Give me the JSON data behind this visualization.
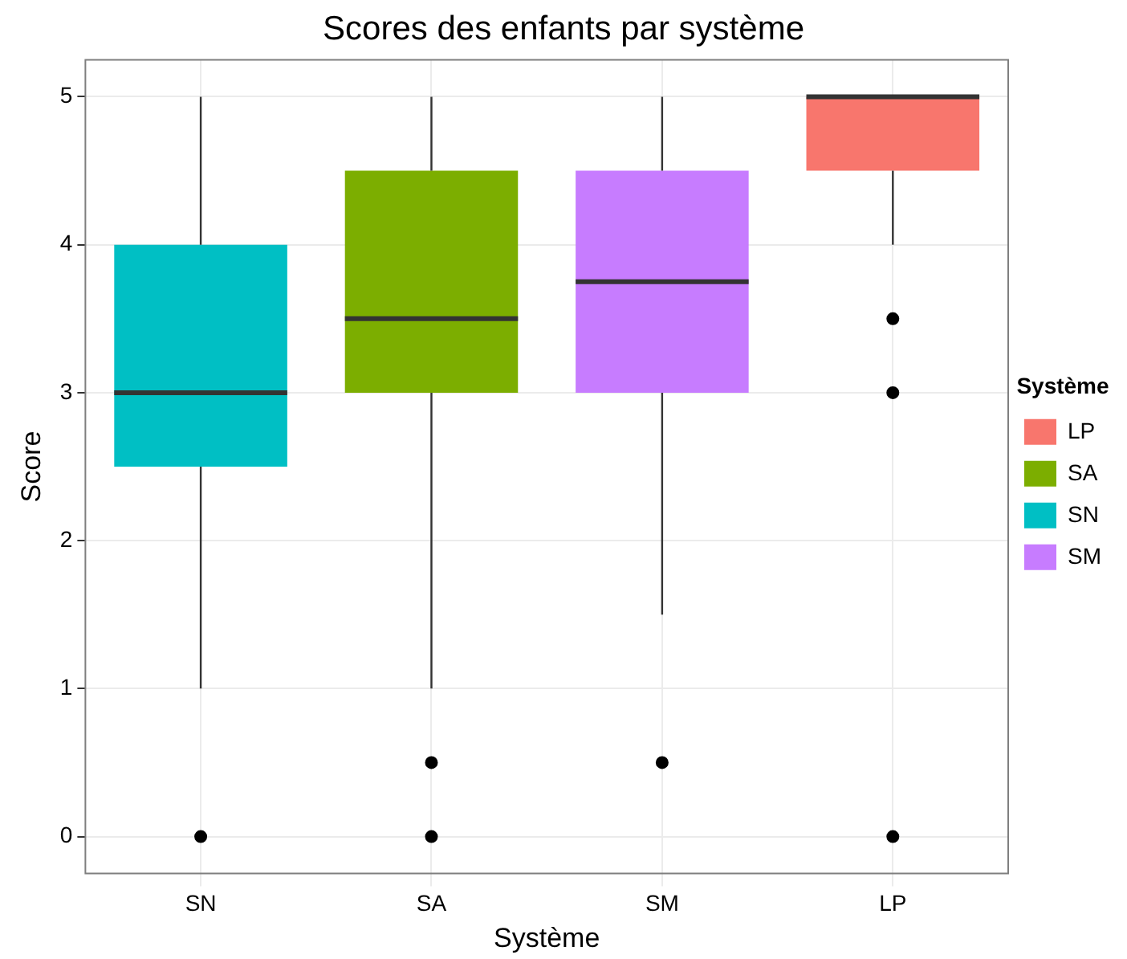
{
  "chart_data": {
    "type": "box",
    "title": "Scores des enfants par système",
    "xlabel": "Système",
    "ylabel": "Score",
    "legend_title": "Système",
    "categories": [
      "SN",
      "SA",
      "SM",
      "LP"
    ],
    "ylim": [
      -0.25,
      5.25
    ],
    "yticks": [
      0,
      1,
      2,
      3,
      4,
      5
    ],
    "grid": true,
    "legend": "right",
    "series": [
      {
        "name": "LP",
        "color": "#f8766d",
        "boxes": [
          null,
          null,
          null,
          {
            "low": 4,
            "q1": 4.5,
            "median": 5,
            "q3": 5,
            "high": 5,
            "outliers": [
              3.5,
              3,
              0
            ]
          }
        ]
      },
      {
        "name": "SA",
        "color": "#7cae00",
        "boxes": [
          null,
          {
            "low": 1,
            "q1": 3,
            "median": 3.5,
            "q3": 4.5,
            "high": 5,
            "outliers": [
              0.5,
              0
            ]
          },
          null,
          null
        ]
      },
      {
        "name": "SN",
        "color": "#00bfc4",
        "boxes": [
          {
            "low": 1,
            "q1": 2.5,
            "median": 3,
            "q3": 4,
            "high": 5,
            "outliers": [
              0
            ]
          },
          null,
          null,
          null
        ]
      },
      {
        "name": "SM",
        "color": "#c77cff",
        "boxes": [
          null,
          null,
          {
            "low": 1.5,
            "q1": 3,
            "median": 3.75,
            "q3": 4.5,
            "high": 5,
            "outliers": [
              0.5
            ]
          },
          null
        ]
      }
    ]
  }
}
